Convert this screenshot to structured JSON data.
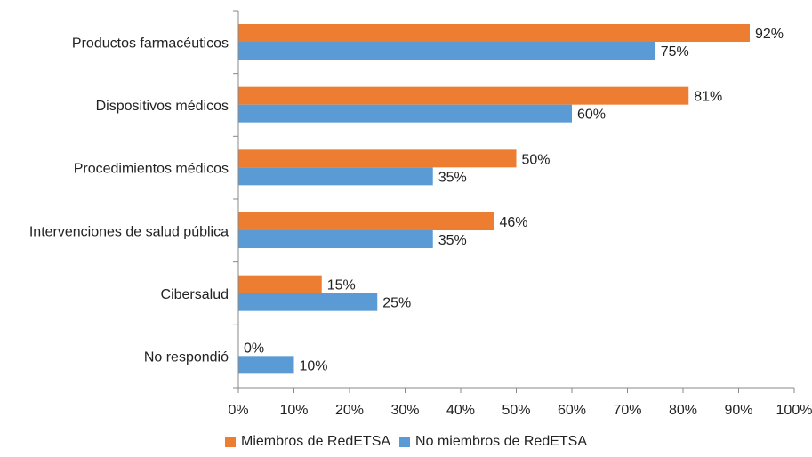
{
  "chart_data": {
    "type": "bar",
    "orientation": "horizontal",
    "categories": [
      "Productos farmacéuticos",
      "Dispositivos médicos",
      "Procedimientos médicos",
      "Intervenciones de salud pública",
      "Cibersalud",
      "No respondió"
    ],
    "series": [
      {
        "name": "Miembros de RedETSA",
        "color": "#ED7D31",
        "values": [
          92,
          81,
          50,
          46,
          15,
          0
        ]
      },
      {
        "name": "No miembros de RedETSA",
        "color": "#5B9BD5",
        "values": [
          75,
          60,
          35,
          35,
          25,
          10
        ]
      }
    ],
    "value_labels": [
      [
        "92%",
        "81%",
        "50%",
        "46%",
        "15%",
        "0%"
      ],
      [
        "75%",
        "60%",
        "35%",
        "35%",
        "25%",
        "10%"
      ]
    ],
    "x_ticks": [
      "0%",
      "10%",
      "20%",
      "30%",
      "40%",
      "50%",
      "60%",
      "70%",
      "80%",
      "90%",
      "100%"
    ],
    "xlim": [
      0,
      100
    ],
    "grid": false,
    "legend_position": "bottom"
  }
}
